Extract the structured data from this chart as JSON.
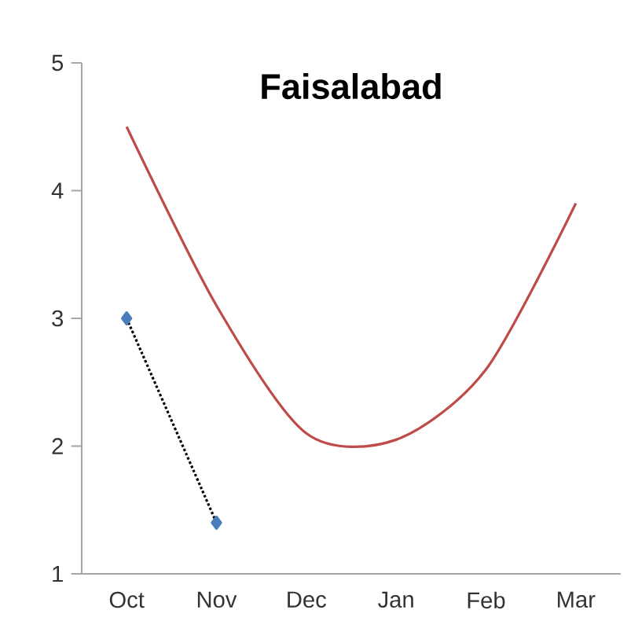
{
  "chart_data": {
    "type": "line",
    "title": "Faisalabad",
    "categories": [
      "Oct",
      "Nov",
      "Dec",
      "Jan",
      "Feb",
      "Mar"
    ],
    "series": [
      {
        "color": "#4a7ebb",
        "values": [
          3,
          1.4,
          null,
          null,
          null,
          null
        ],
        "marker": "diamond",
        "line_style": "dotted"
      },
      {
        "color": "#be4b48",
        "values": [
          4.5,
          3.1,
          2.1,
          2.05,
          2.6,
          3.9
        ],
        "marker": "none",
        "line_style": "solid"
      }
    ],
    "ylim": [
      1,
      5
    ],
    "yticks": [
      1,
      2,
      3,
      4,
      5
    ],
    "grid": false
  }
}
